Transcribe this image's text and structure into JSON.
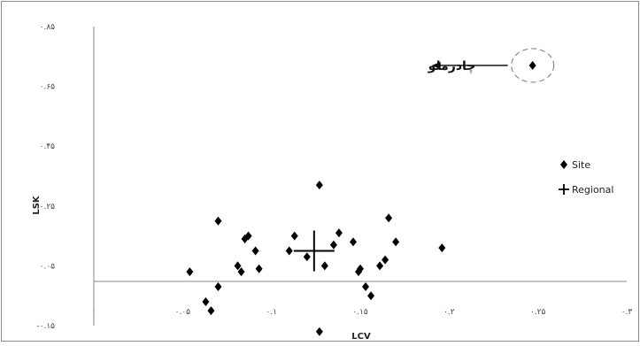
{
  "chart_data": {
    "type": "scatter",
    "xlabel": "LCV",
    "ylabel": "LSK",
    "xlim": [
      0,
      0.3
    ],
    "ylim": [
      -0.15,
      0.85
    ],
    "xticks": [
      {
        "value": 0,
        "label": "‪·‬"
      },
      {
        "value": 0.05,
        "label": "۰.۰۵"
      },
      {
        "value": 0.1,
        "label": "۰.۱"
      },
      {
        "value": 0.15,
        "label": "۰.۱۵"
      },
      {
        "value": 0.2,
        "label": "۰.۲"
      },
      {
        "value": 0.25,
        "label": "۰.۲۵"
      },
      {
        "value": 0.3,
        "label": "۰.۳"
      }
    ],
    "yticks": [
      {
        "value": 0.85,
        "label": "۰.۸۵"
      },
      {
        "value": 0.65,
        "label": "۰.۶۵"
      },
      {
        "value": 0.45,
        "label": "۰.۴۵"
      },
      {
        "value": 0.25,
        "label": "۰.۲۵"
      },
      {
        "value": 0.05,
        "label": "۰.۰۵"
      },
      {
        "value": -0.15,
        "label": "-۰.۱۵"
      }
    ],
    "series": [
      {
        "name": "Site",
        "marker": "diamond",
        "color": "#000000",
        "points": [
          [
            0.054,
            0.03
          ],
          [
            0.063,
            -0.07
          ],
          [
            0.066,
            -0.1
          ],
          [
            0.07,
            0.2
          ],
          [
            0.07,
            -0.02
          ],
          [
            0.081,
            0.05
          ],
          [
            0.083,
            0.03
          ],
          [
            0.085,
            0.14
          ],
          [
            0.087,
            0.15
          ],
          [
            0.091,
            0.1
          ],
          [
            0.093,
            0.04
          ],
          [
            0.11,
            0.1
          ],
          [
            0.113,
            0.15
          ],
          [
            0.12,
            0.08
          ],
          [
            0.127,
            0.32
          ],
          [
            0.13,
            0.05
          ],
          [
            0.127,
            -0.17
          ],
          [
            0.135,
            0.12
          ],
          [
            0.138,
            0.16
          ],
          [
            0.146,
            0.13
          ],
          [
            0.149,
            0.03
          ],
          [
            0.15,
            0.04
          ],
          [
            0.153,
            -0.02
          ],
          [
            0.156,
            -0.05
          ],
          [
            0.161,
            0.05
          ],
          [
            0.164,
            0.07
          ],
          [
            0.166,
            0.21
          ],
          [
            0.17,
            0.13
          ],
          [
            0.196,
            0.11
          ],
          [
            0.247,
            0.72
          ]
        ]
      },
      {
        "name": "Regional",
        "marker": "cross",
        "color": "#000000",
        "points": [
          [
            0.124,
            0.1
          ]
        ]
      }
    ],
    "annotations": [
      {
        "text": "چادرملو",
        "target_series": "Site",
        "target_point": [
          0.247,
          0.72
        ]
      }
    ],
    "legend_position": "right",
    "grid": false
  }
}
